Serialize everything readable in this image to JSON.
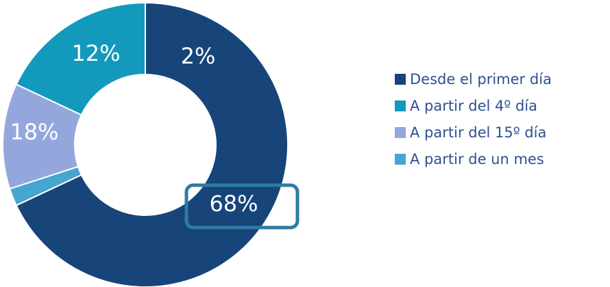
{
  "chart_data": {
    "type": "pie",
    "donut": true,
    "title": "",
    "categories": [
      "Desde el primer día",
      "A partir del 4º día",
      "A partir del 15º día",
      "A partir de un mes"
    ],
    "values": [
      68,
      18,
      12,
      2
    ],
    "data_labels": [
      "68%",
      "18%",
      "12%",
      "2%"
    ],
    "colors": [
      "#17457a",
      "#1399bc",
      "#94a7dd",
      "#45a6cf"
    ],
    "legend": "right",
    "highlighted_label": "68%",
    "highlight_color": "#2f7aa2"
  }
}
